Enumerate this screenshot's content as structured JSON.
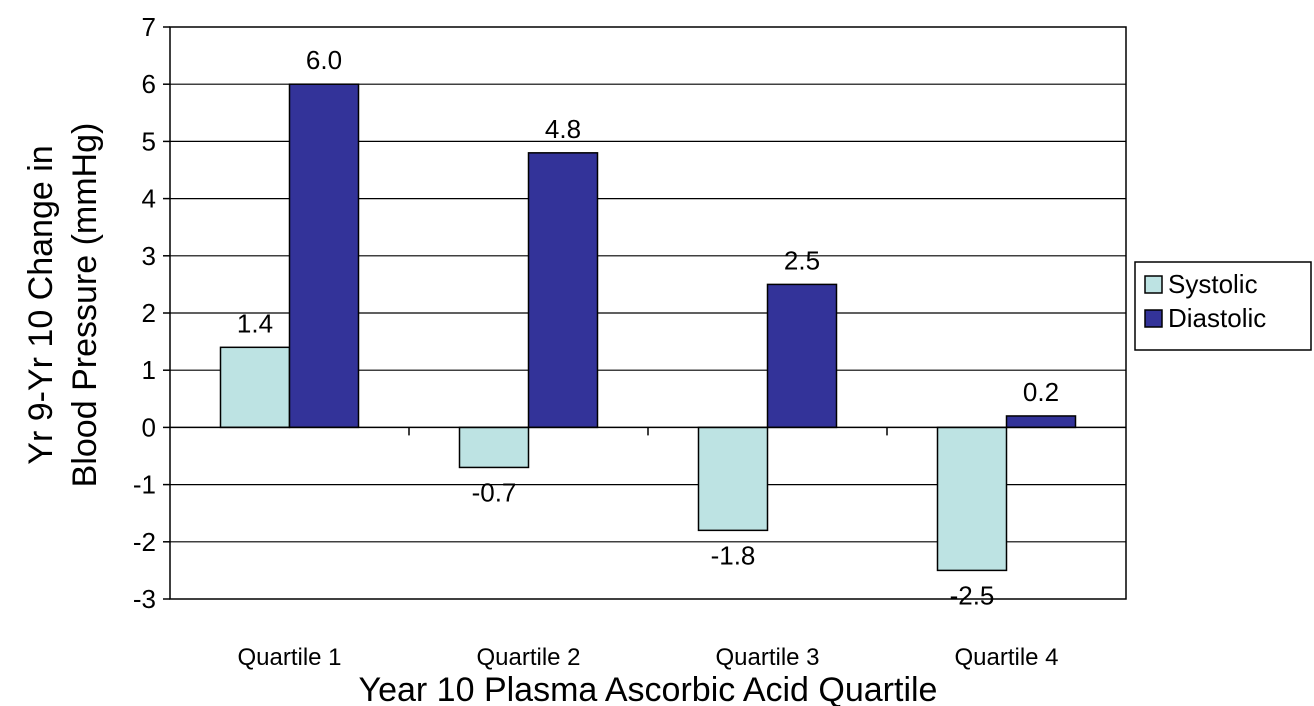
{
  "chart_data": {
    "type": "bar",
    "title": "",
    "xlabel": "Year 10 Plasma Ascorbic Acid Quartile",
    "ylabel_lines": [
      "Yr 9-Yr 10 Change in",
      "Blood Pressure (mmHg)"
    ],
    "categories": [
      "Quartile 1",
      "Quartile 2",
      "Quartile 3",
      "Quartile 4"
    ],
    "series": [
      {
        "name": "Systolic",
        "values": [
          1.4,
          -0.7,
          -1.8,
          -2.5
        ],
        "labels": [
          "1.4",
          "-0.7",
          "-1.8",
          "-2.5"
        ],
        "color": "#BDE3E3"
      },
      {
        "name": "Diastolic",
        "values": [
          6.0,
          4.8,
          2.5,
          0.2
        ],
        "labels": [
          "6.0",
          "4.8",
          "2.5",
          "0.2"
        ],
        "color": "#333399"
      }
    ],
    "ylim": [
      -3,
      7
    ],
    "yticks": [
      -3,
      -2,
      -1,
      0,
      1,
      2,
      3,
      4,
      5,
      6,
      7
    ],
    "grid": true,
    "legend": "right"
  }
}
